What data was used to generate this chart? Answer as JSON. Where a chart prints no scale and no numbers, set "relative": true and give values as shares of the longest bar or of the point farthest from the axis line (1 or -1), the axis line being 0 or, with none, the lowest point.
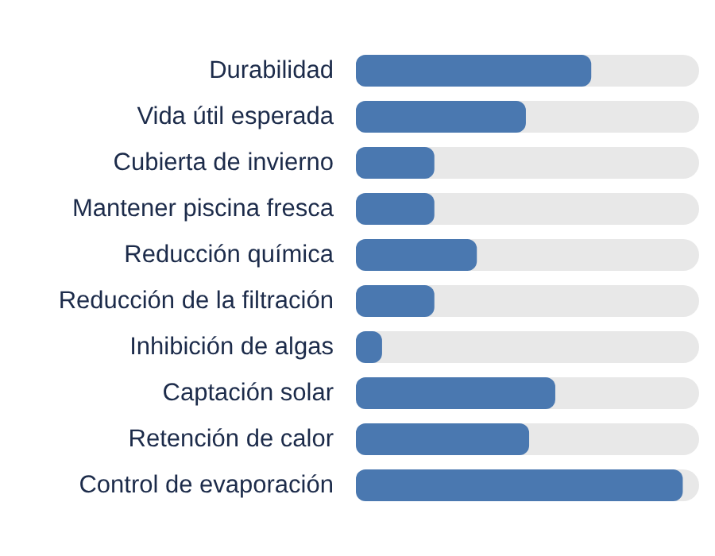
{
  "chart_data": {
    "type": "bar",
    "orientation": "horizontal",
    "relative": true,
    "color": "#4a78b0",
    "categories": [
      "Durabilidad",
      "Vida útil esperada",
      "Cubierta de invierno",
      "Mantener piscina fresca",
      "Reducción química",
      "Reducción de la filtración",
      "Inhibición de algas",
      "Captación solar",
      "Retención de calor",
      "Control de evaporación"
    ],
    "values": [
      0.72,
      0.52,
      0.24,
      0.24,
      0.37,
      0.24,
      0.08,
      0.61,
      0.53,
      1
    ]
  }
}
